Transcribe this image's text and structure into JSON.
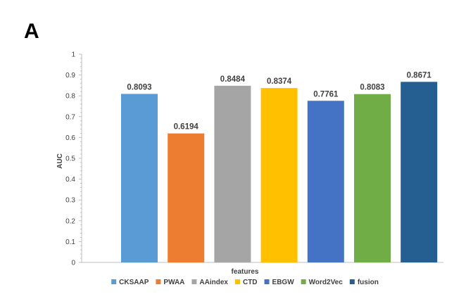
{
  "panel_label": "A",
  "chart_data": {
    "type": "bar",
    "categories": [
      "CKSAAP",
      "PWAA",
      "AAindex",
      "CTD",
      "EBGW",
      "Word2Vec",
      "fusion"
    ],
    "values": [
      0.8093,
      0.6194,
      0.8484,
      0.8374,
      0.7761,
      0.8083,
      0.8671
    ],
    "data_labels": [
      "0.8093",
      "0.6194",
      "0.8484",
      "0.8374",
      "0.7761",
      "0.8083",
      "0.8671"
    ],
    "colors": [
      "#5B9BD5",
      "#ED7D31",
      "#A5A5A5",
      "#FFC000",
      "#4472C4",
      "#70AD47",
      "#255E91"
    ],
    "title": "",
    "xlabel": "features",
    "ylabel": "AUC",
    "ylim": [
      0,
      1
    ],
    "yticks": [
      "0",
      "0.1",
      "0.2",
      "0.3",
      "0.4",
      "0.5",
      "0.6",
      "0.7",
      "0.8",
      "0.9",
      "1"
    ],
    "grid": false,
    "legend": {
      "position": "bottom",
      "entries": [
        "CKSAAP",
        "PWAA",
        "AAindex",
        "CTD",
        "EBGW",
        "Word2Vec",
        "fusion"
      ]
    }
  }
}
